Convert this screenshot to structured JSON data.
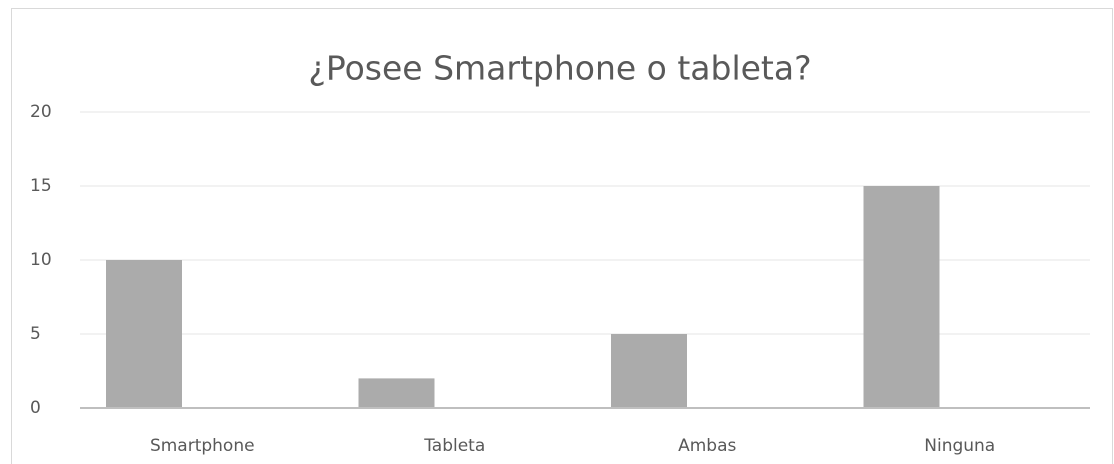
{
  "chart_data": {
    "type": "bar",
    "title": "¿Posee Smartphone o tableta?",
    "categories": [
      "Smartphone",
      "Tableta",
      "Ambas",
      "Ninguna"
    ],
    "values": [
      10,
      2,
      5,
      15
    ],
    "color": "#ababab",
    "ylim": [
      0,
      20
    ],
    "yticks": [
      0,
      5,
      10,
      15,
      20
    ],
    "grid": true
  }
}
